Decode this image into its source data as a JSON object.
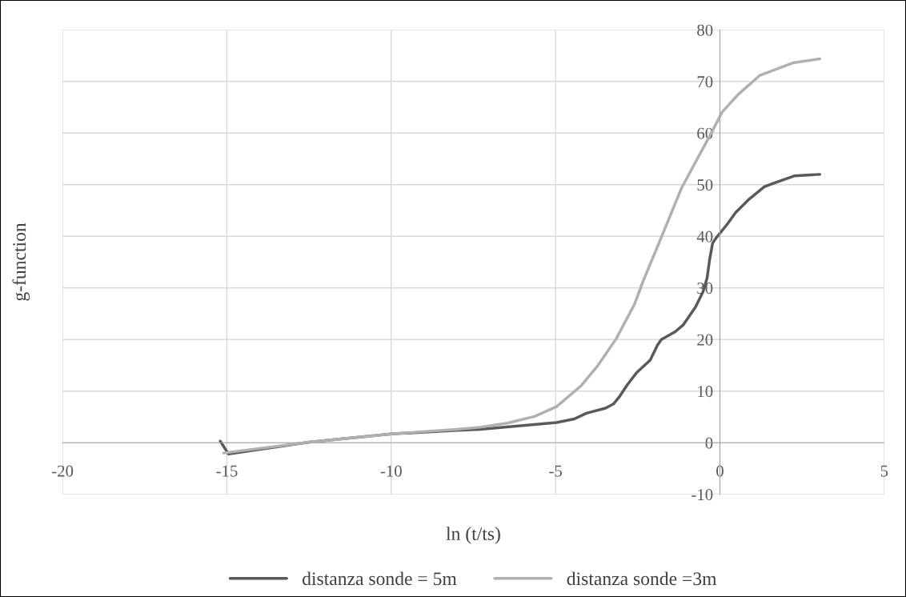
{
  "chart_data": {
    "type": "line",
    "xlabel": "ln (t/ts)",
    "ylabel": "g-function",
    "xlim": [
      -20,
      5
    ],
    "xticks": [
      -20,
      -15,
      -10,
      -5,
      0,
      5
    ],
    "ylim": [
      -10,
      80
    ],
    "yticks": [
      -10,
      0,
      10,
      20,
      30,
      40,
      50,
      60,
      70,
      80
    ],
    "grid": true,
    "legend": "bottom",
    "marker": "none",
    "line_style": "solid",
    "series": [
      {
        "name": "distanza sonde = 5m",
        "color": "#595959",
        "x": [
          -15.2,
          -14.95,
          -12.5,
          -10,
          -8,
          -7.3,
          -4.97,
          -4.43,
          -4.06,
          -3.48,
          -3.24,
          -3.07,
          -2.82,
          -2.53,
          -2.12,
          -1.9,
          -1.78,
          -1.36,
          -1.12,
          -0.74,
          -0.51,
          -0.39,
          -0.31,
          -0.22,
          -0.1,
          0.23,
          0.48,
          0.89,
          1.35,
          1.64,
          2.26,
          3.04
        ],
        "values": [
          0.3,
          -2.2,
          0.1,
          1.7,
          2.4,
          2.6,
          3.9,
          4.6,
          5.7,
          6.7,
          7.5,
          8.8,
          11.2,
          13.6,
          16.0,
          18.9,
          20.0,
          21.5,
          22.8,
          26.3,
          29.3,
          31.9,
          35.6,
          38.7,
          39.8,
          42.4,
          44.6,
          47.2,
          49.6,
          50.3,
          51.7,
          52.0
        ]
      },
      {
        "name": "distanza sonde =3m",
        "color": "#b0b0b0",
        "x": [
          -15.1,
          -12.5,
          -10,
          -8,
          -7.3,
          -6.47,
          -5.64,
          -4.97,
          -4.23,
          -3.72,
          -3.15,
          -2.6,
          -2.33,
          -1.75,
          -1.17,
          -0.68,
          -0.27,
          0.07,
          0.56,
          1.22,
          2.22,
          3.04
        ],
        "values": [
          -2.0,
          0.1,
          1.7,
          2.6,
          3.0,
          3.8,
          5.1,
          7.0,
          11.0,
          14.9,
          20.2,
          26.8,
          31.4,
          40.3,
          49.3,
          55.1,
          59.9,
          64.1,
          67.5,
          71.2,
          73.6,
          74.4
        ]
      }
    ]
  }
}
